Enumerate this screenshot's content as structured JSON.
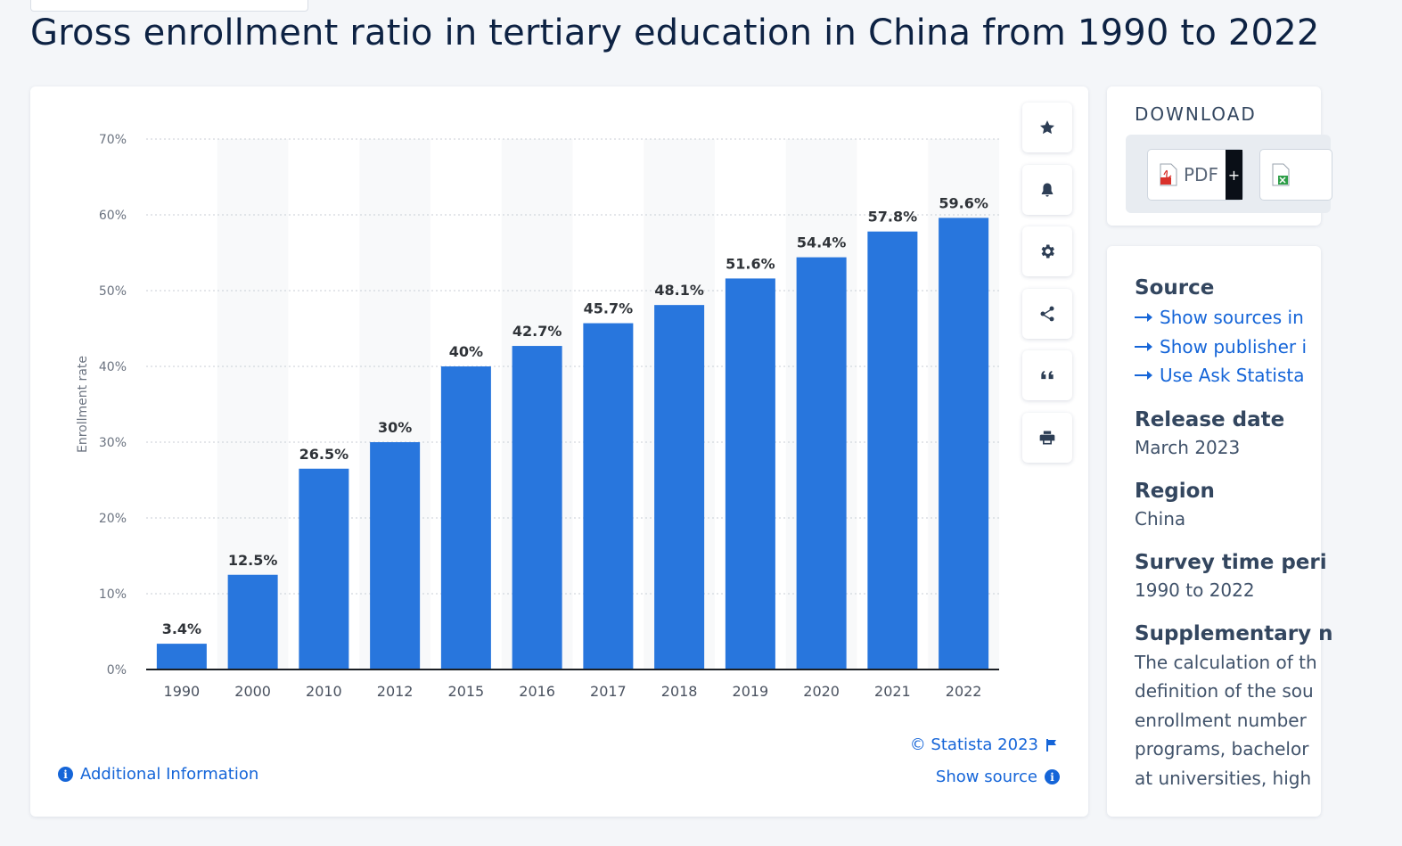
{
  "page": {
    "title": "Gross enrollment ratio in tertiary education in China from 1990 to 2022"
  },
  "toolbar": {
    "tools": [
      {
        "name": "star-icon",
        "label": "Favorite"
      },
      {
        "name": "bell-icon",
        "label": "Notifications"
      },
      {
        "name": "gear-icon",
        "label": "Settings"
      },
      {
        "name": "share-icon",
        "label": "Share"
      },
      {
        "name": "quote-icon",
        "label": "Cite"
      },
      {
        "name": "printer-icon",
        "label": "Print"
      }
    ]
  },
  "chart_data": {
    "type": "bar",
    "title": "Gross enrollment ratio in tertiary education in China from 1990 to 2022",
    "categories": [
      "1990",
      "2000",
      "2010",
      "2012",
      "2015",
      "2016",
      "2017",
      "2018",
      "2019",
      "2020",
      "2021",
      "2022"
    ],
    "values": [
      3.4,
      12.5,
      26.5,
      30,
      40,
      42.7,
      45.7,
      48.1,
      51.6,
      54.4,
      57.8,
      59.6
    ],
    "value_labels": [
      "3.4%",
      "12.5%",
      "26.5%",
      "30%",
      "40%",
      "42.7%",
      "45.7%",
      "48.1%",
      "51.6%",
      "54.4%",
      "57.8%",
      "59.6%"
    ],
    "xlabel": "",
    "ylabel": "Enrollment rate",
    "ylim": [
      0,
      70
    ],
    "yticks": [
      0,
      10,
      20,
      30,
      40,
      50,
      60,
      70
    ],
    "ytick_labels": [
      "0%",
      "10%",
      "20%",
      "30%",
      "40%",
      "50%",
      "60%",
      "70%"
    ],
    "bar_color": "#2876dd",
    "grid": true,
    "legend": "none"
  },
  "chart_footer": {
    "copyright": "© Statista 2023",
    "show_source": "Show source",
    "additional_info": "Additional Information"
  },
  "download": {
    "title": "DOWNLOAD",
    "pdf_label": "PDF",
    "plus_label": "+"
  },
  "info": {
    "source_heading": "Source",
    "source_links": [
      "Show sources in",
      "Show publisher i",
      "Use Ask Statista"
    ],
    "release_heading": "Release date",
    "release_value": "March 2023",
    "region_heading": "Region",
    "region_value": "China",
    "survey_heading": "Survey time peri",
    "survey_value": "1990 to 2022",
    "supp_heading": "Supplementary n",
    "supp_lines": [
      "The calculation of th",
      "definition of the sou",
      "enrollment number",
      "programs, bachelor",
      "at universities, high"
    ]
  },
  "colors": {
    "accent": "#1565d8",
    "bar": "#2876dd",
    "title": "#0d2243"
  }
}
